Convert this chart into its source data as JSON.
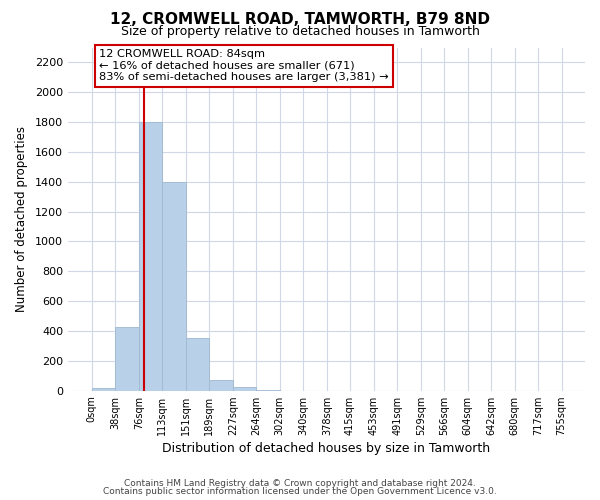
{
  "title": "12, CROMWELL ROAD, TAMWORTH, B79 8ND",
  "subtitle": "Size of property relative to detached houses in Tamworth",
  "xlabel": "Distribution of detached houses by size in Tamworth",
  "ylabel": "Number of detached properties",
  "bin_edges": [
    0,
    38,
    76,
    113,
    151,
    189,
    227,
    264,
    302,
    340,
    378,
    415,
    453,
    491,
    529,
    566,
    604,
    642,
    680,
    717,
    755
  ],
  "bin_heights": [
    20,
    430,
    1800,
    1400,
    350,
    75,
    25,
    5,
    0,
    0,
    0,
    0,
    0,
    0,
    0,
    0,
    0,
    0,
    0,
    0
  ],
  "bar_color": "#b8d0e8",
  "bar_edge_color": "#a0b8d0",
  "property_line_x": 84,
  "property_line_color": "#cc0000",
  "ylim": [
    0,
    2300
  ],
  "yticks": [
    0,
    200,
    400,
    600,
    800,
    1000,
    1200,
    1400,
    1600,
    1800,
    2000,
    2200
  ],
  "annotation_text_line1": "12 CROMWELL ROAD: 84sqm",
  "annotation_text_line2": "← 16% of detached houses are smaller (671)",
  "annotation_text_line3": "83% of semi-detached houses are larger (3,381) →",
  "footer_line1": "Contains HM Land Registry data © Crown copyright and database right 2024.",
  "footer_line2": "Contains public sector information licensed under the Open Government Licence v3.0.",
  "background_color": "#ffffff",
  "grid_color": "#d0d8e8",
  "title_fontsize": 11,
  "subtitle_fontsize": 9
}
